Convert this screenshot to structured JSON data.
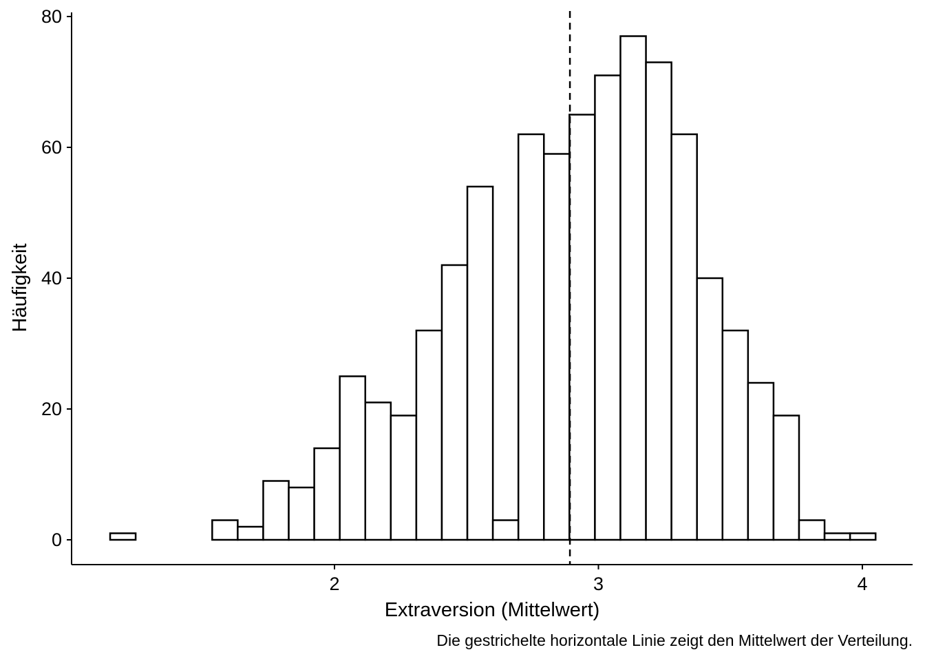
{
  "chart_data": {
    "type": "bar",
    "subtype": "histogram",
    "bin_start": 1.15,
    "bin_width": 0.09667,
    "counts": [
      1,
      0,
      0,
      0,
      3,
      2,
      9,
      8,
      14,
      25,
      21,
      19,
      32,
      42,
      54,
      3,
      62,
      59,
      65,
      71,
      77,
      73,
      62,
      40,
      32,
      24,
      19,
      3,
      1,
      1
    ],
    "mean_line": 2.892,
    "xlabel": "Extraversion (Mittelwert)",
    "ylabel": "Häufigkeit",
    "caption": "Die gestrichelte horizontale Linie zeigt den Mittelwert der Verteilung.",
    "x_ticks": [
      2,
      3,
      4
    ],
    "x_tick_labels": [
      "2",
      "3",
      "4"
    ],
    "y_ticks": [
      0,
      20,
      40,
      60,
      80
    ],
    "y_tick_labels": [
      "0",
      "20",
      "40",
      "60",
      "80"
    ],
    "xlim": [
      1.0,
      4.2
    ],
    "ylim": [
      -3.8,
      80
    ],
    "grid": false,
    "colors": {
      "fill": "#ffffff",
      "stroke": "#000000"
    }
  }
}
